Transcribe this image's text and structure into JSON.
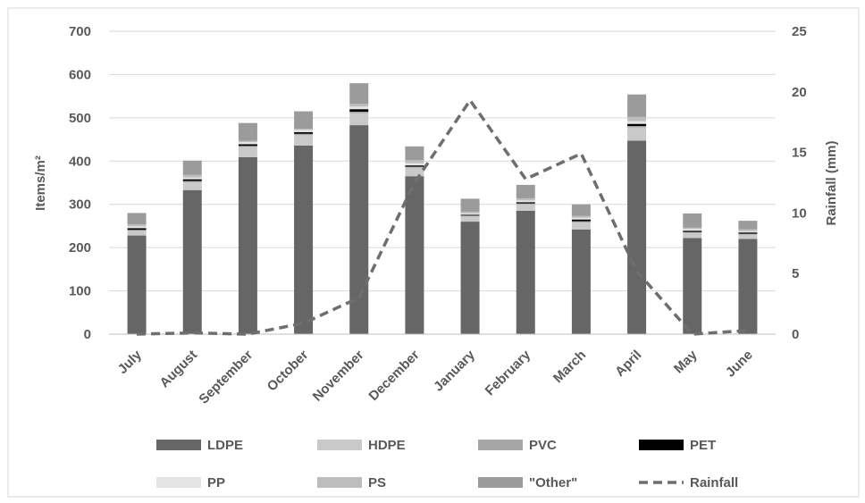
{
  "chart_data": {
    "type": "bar",
    "title": "",
    "ylabel": "Items/m²",
    "y2label": "Rainfall (mm)",
    "ylim": [
      0,
      700
    ],
    "y2lim": [
      0,
      25
    ],
    "yticks": [
      "0",
      "100",
      "200",
      "300",
      "400",
      "500",
      "600",
      "700"
    ],
    "y2ticks": [
      "0",
      "5",
      "10",
      "15",
      "20",
      "25"
    ],
    "categories": [
      "July",
      "August",
      "September",
      "October",
      "November",
      "December",
      "January",
      "February",
      "March",
      "April",
      "May",
      "June"
    ],
    "series": [
      {
        "name": "LDPE",
        "color": "#666666",
        "values": [
          228,
          333,
          409,
          436,
          483,
          365,
          260,
          285,
          242,
          447,
          222,
          220
        ]
      },
      {
        "name": "HDPE",
        "color": "#c9c9c9",
        "values": [
          11,
          18,
          24,
          24,
          28,
          20,
          12,
          15,
          16,
          31,
          12,
          10
        ]
      },
      {
        "name": "PVC",
        "color": "#a6a6a6",
        "values": [
          2,
          3,
          2,
          3,
          3,
          2,
          2,
          2,
          3,
          3,
          2,
          2
        ]
      },
      {
        "name": "PET",
        "color": "#000000",
        "values": [
          4,
          4,
          4,
          4,
          6,
          3,
          2,
          3,
          4,
          5,
          3,
          3
        ]
      },
      {
        "name": "PP",
        "color": "#e4e4e4",
        "values": [
          4,
          4,
          5,
          5,
          6,
          5,
          3,
          4,
          4,
          6,
          4,
          3
        ]
      },
      {
        "name": "PS",
        "color": "#bdbdbd",
        "values": [
          5,
          6,
          3,
          3,
          6,
          7,
          4,
          5,
          4,
          10,
          3,
          4
        ]
      },
      {
        "name": "\"Other\"",
        "color": "#9b9b9b",
        "values": [
          26,
          33,
          41,
          40,
          48,
          32,
          30,
          31,
          27,
          52,
          33,
          20
        ]
      }
    ],
    "line_series": {
      "name": "Rainfall",
      "axis": "right",
      "color": "#6e6e6e",
      "style": "dashed",
      "values": [
        0,
        0.1,
        0,
        0.9,
        3.0,
        12.5,
        19.3,
        12.8,
        14.9,
        5.2,
        0,
        0.3
      ]
    },
    "grid": true,
    "legend": "bottom"
  }
}
